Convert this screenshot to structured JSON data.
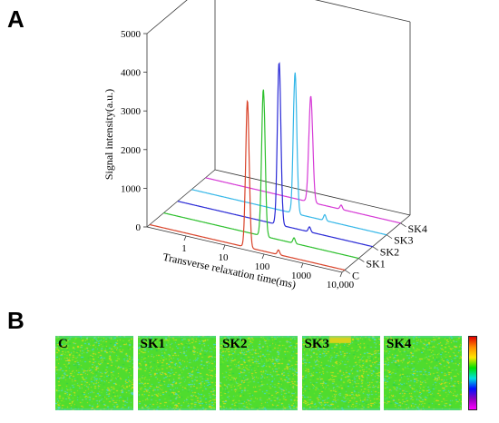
{
  "panel_a_label": "A",
  "panel_b_label": "B",
  "chart_data": {
    "type": "line",
    "view": "3d-waterfall",
    "ylabel": "Signal intensity(a.u.)",
    "xlabel": "Transverse relaxation time(ms)",
    "x_ticks": [
      "1",
      "10",
      "100",
      "1000",
      "10,000"
    ],
    "xscale": "log",
    "xlim": [
      0.1,
      10000
    ],
    "ylim": [
      0,
      5000
    ],
    "y_ticks": [
      "0",
      "1000",
      "2000",
      "3000",
      "4000",
      "5000"
    ],
    "grid": false,
    "series": [
      {
        "name": "C",
        "color": "#d9442b",
        "peaks": [
          {
            "x": 32,
            "y": 3800,
            "w": 0.045
          },
          {
            "x": 200,
            "y": 120,
            "w": 0.03
          }
        ]
      },
      {
        "name": "SK1",
        "color": "#2ec02e",
        "peaks": [
          {
            "x": 36,
            "y": 3800,
            "w": 0.045
          },
          {
            "x": 220,
            "y": 140,
            "w": 0.03
          }
        ]
      },
      {
        "name": "SK2",
        "color": "#2a2ad6",
        "peaks": [
          {
            "x": 40,
            "y": 4200,
            "w": 0.045
          },
          {
            "x": 240,
            "y": 130,
            "w": 0.03
          }
        ]
      },
      {
        "name": "SK3",
        "color": "#35b7e8",
        "peaks": [
          {
            "x": 45,
            "y": 3650,
            "w": 0.045
          },
          {
            "x": 260,
            "y": 150,
            "w": 0.03
          }
        ]
      },
      {
        "name": "SK4",
        "color": "#d63ad6",
        "peaks": [
          {
            "x": 50,
            "y": 2750,
            "w": 0.05
          },
          {
            "x": 300,
            "y": 110,
            "w": 0.03
          }
        ]
      }
    ]
  },
  "images": [
    {
      "label": "C",
      "seed": 11
    },
    {
      "label": "SK1",
      "seed": 23
    },
    {
      "label": "SK2",
      "seed": 37
    },
    {
      "label": "SK3",
      "seed": 51
    },
    {
      "label": "SK4",
      "seed": 67
    }
  ],
  "colorbar_colors": [
    "#e00000",
    "#ff8a00",
    "#ffe600",
    "#00e000",
    "#00e0e0",
    "#0010ff",
    "#9000c0",
    "#ff00ff"
  ]
}
